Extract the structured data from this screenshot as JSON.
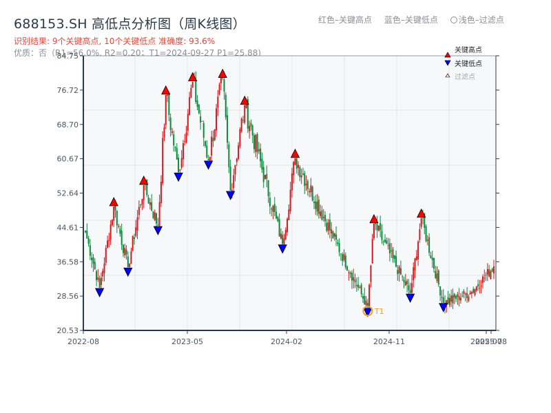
{
  "header": {
    "title": "688153.SH 高低点分析图（周K线图）",
    "result_line": "识别结果: 9个关键高点, 10个关键低点  准确度: 93.6%",
    "quality_line": "优质：否（R1=56.0%, R2=0.20；T1=2024-09-27 P1=25.88)"
  },
  "top_legend": {
    "red": "红色–关键高点",
    "blue": "蓝色–关键低点",
    "filtered": "浅色–过滤点"
  },
  "plot_legend": {
    "high": "关键高点",
    "low": "关键低点",
    "filtered": "过滤点"
  },
  "colors": {
    "up": "#d7191c",
    "down": "#0a8a3a",
    "high_marker": "#ff0000",
    "low_marker": "#0000ff",
    "t1_ring": "#f59a23",
    "axis": "#2b3a4a",
    "grid": "#e3e6ea",
    "plot_bg": "#f6f8fa"
  },
  "chart_data": {
    "type": "candlestick",
    "title": "688153.SH 高低点分析图（周K线图）",
    "xlabel": "",
    "ylabel": "",
    "ylim": [
      20.53,
      84.75
    ],
    "y_ticks": [
      "20.53",
      "28.56",
      "36.58",
      "44.61",
      "52.64",
      "60.67",
      "68.70",
      "76.72",
      "84.75"
    ],
    "x_ticks": [
      "2022-08",
      "2023-05",
      "2024-02",
      "2024-11",
      "2025-07",
      "2025-08"
    ],
    "grid": true,
    "legend_position": "upper right",
    "pivots": [
      {
        "i": 0,
        "p": 43.5
      },
      {
        "i": 9,
        "p": 30.5,
        "type": "low"
      },
      {
        "i": 18,
        "p": 49.5,
        "type": "high"
      },
      {
        "i": 27,
        "p": 35.3,
        "type": "low"
      },
      {
        "i": 37,
        "p": 54.5,
        "type": "high"
      },
      {
        "i": 46,
        "p": 45.0,
        "type": "low"
      },
      {
        "i": 51,
        "p": 75.6,
        "type": "high"
      },
      {
        "i": 59,
        "p": 57.5,
        "type": "low"
      },
      {
        "i": 68,
        "p": 78.7,
        "type": "high"
      },
      {
        "i": 78,
        "p": 60.3,
        "type": "low"
      },
      {
        "i": 87,
        "p": 79.5,
        "type": "high"
      },
      {
        "i": 92,
        "p": 53.2,
        "type": "low"
      },
      {
        "i": 101,
        "p": 73.2,
        "type": "high"
      },
      {
        "i": 125,
        "p": 40.7,
        "type": "low"
      },
      {
        "i": 133,
        "p": 60.8,
        "type": "high"
      },
      {
        "i": 179,
        "p": 25.88,
        "type": "low",
        "label": "T1"
      },
      {
        "i": 183,
        "p": 45.5,
        "type": "high"
      },
      {
        "i": 206,
        "p": 29.2,
        "type": "low"
      },
      {
        "i": 213,
        "p": 46.8,
        "type": "high"
      },
      {
        "i": 227,
        "p": 27.0,
        "type": "low"
      },
      {
        "i": 245,
        "p": 29.5
      },
      {
        "i": 259,
        "p": 35.5
      }
    ],
    "n_candles": 260,
    "annotation": {
      "text": "T1",
      "date": "2024-09-27",
      "price": 25.88
    }
  }
}
